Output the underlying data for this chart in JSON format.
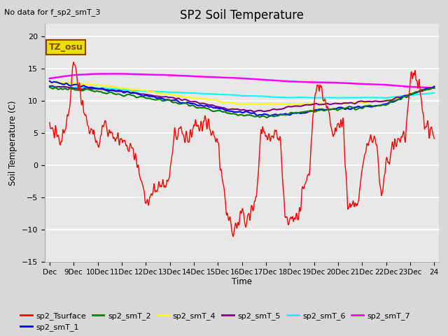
{
  "title": "SP2 Soil Temperature",
  "no_data_label": "No data for f_sp2_smT_3",
  "tz_label": "TZ_osu",
  "xlabel": "Time",
  "ylabel": "Soil Temperature (C)",
  "ylim": [
    -15,
    22
  ],
  "yticks": [
    -15,
    -10,
    -5,
    0,
    5,
    10,
    15,
    20
  ],
  "background_color": "#d8d8d8",
  "plot_bg_color": "#e8e8e8",
  "grid_color": "#ffffff",
  "colors": {
    "sp2_Tsurface": "red",
    "sp2_smT_1": "blue",
    "sp2_smT_2": "green",
    "sp2_smT_4": "yellow",
    "sp2_smT_5": "purple",
    "sp2_smT_6": "cyan",
    "sp2_smT_7": "magenta"
  },
  "xtick_labels": [
    "Dec",
    "9Dec",
    "10Dec",
    "11Dec",
    "12Dec",
    "13Dec",
    "14Dec",
    "15Dec",
    "16Dec",
    "17Dec",
    "18Dec",
    "19Dec",
    "20Dec",
    "21Dec",
    "22Dec",
    "23Dec",
    "24"
  ],
  "legend_entries": [
    "sp2_Tsurface",
    "sp2_smT_1",
    "sp2_smT_2",
    "sp2_smT_4",
    "sp2_smT_5",
    "sp2_smT_6",
    "sp2_smT_7"
  ],
  "legend_colors": [
    "red",
    "blue",
    "green",
    "yellow",
    "purple",
    "cyan",
    "magenta"
  ]
}
